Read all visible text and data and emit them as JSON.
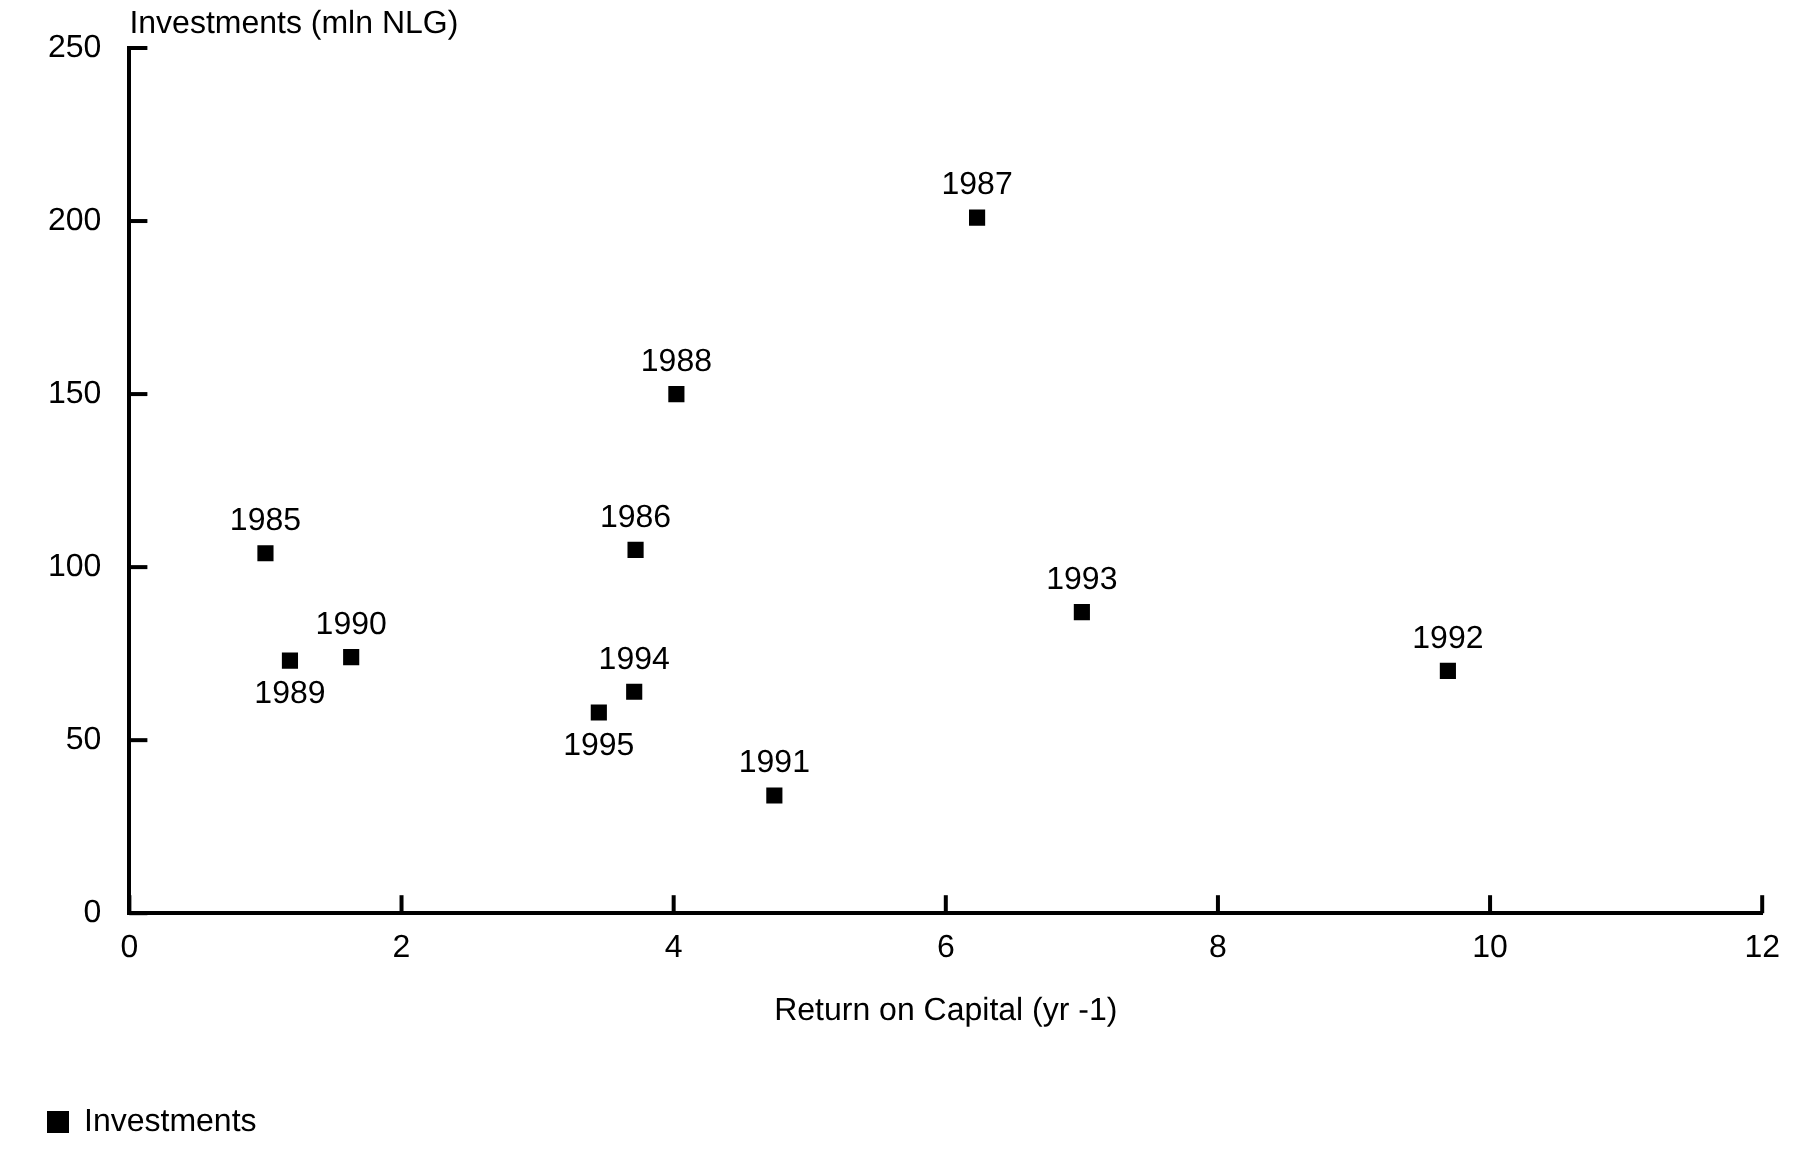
{
  "chart_data": {
    "type": "scatter",
    "ylabel": "Investments (mln NLG)",
    "xlabel": "Return on Capital (yr -1)",
    "xlim": [
      0,
      12
    ],
    "xticks": [
      0,
      2,
      4,
      6,
      8,
      10,
      12
    ],
    "ylim": [
      0,
      250
    ],
    "yticks": [
      0,
      50,
      100,
      150,
      200,
      250
    ],
    "series": [
      {
        "name": "Investments",
        "color": "#000000",
        "x": [
          1.0,
          3.72,
          6.23,
          4.02,
          1.18,
          1.63,
          4.74,
          9.69,
          7.0,
          3.71,
          3.45
        ],
        "values": [
          104,
          105,
          201,
          150,
          73,
          74,
          34,
          70,
          87,
          64,
          58
        ]
      }
    ],
    "annotations": [
      {
        "text": "1985",
        "x": 1.0,
        "y": 104
      },
      {
        "text": "1986",
        "x": 3.72,
        "y": 105
      },
      {
        "text": "1987",
        "x": 6.23,
        "y": 201
      },
      {
        "text": "1988",
        "x": 4.02,
        "y": 150
      },
      {
        "text": "1990",
        "x": 1.63,
        "y": 74
      },
      {
        "text": "1989",
        "x": 1.18,
        "y": 73
      },
      {
        "text": "1991",
        "x": 4.74,
        "y": 34
      },
      {
        "text": "1992",
        "x": 9.69,
        "y": 70
      },
      {
        "text": "1993",
        "x": 7.0,
        "y": 87
      },
      {
        "text": "1994",
        "x": 3.71,
        "y": 64
      },
      {
        "text": "1995",
        "x": 3.45,
        "y": 58
      }
    ],
    "marker": "square",
    "grid": false,
    "legend": "bottom left"
  }
}
